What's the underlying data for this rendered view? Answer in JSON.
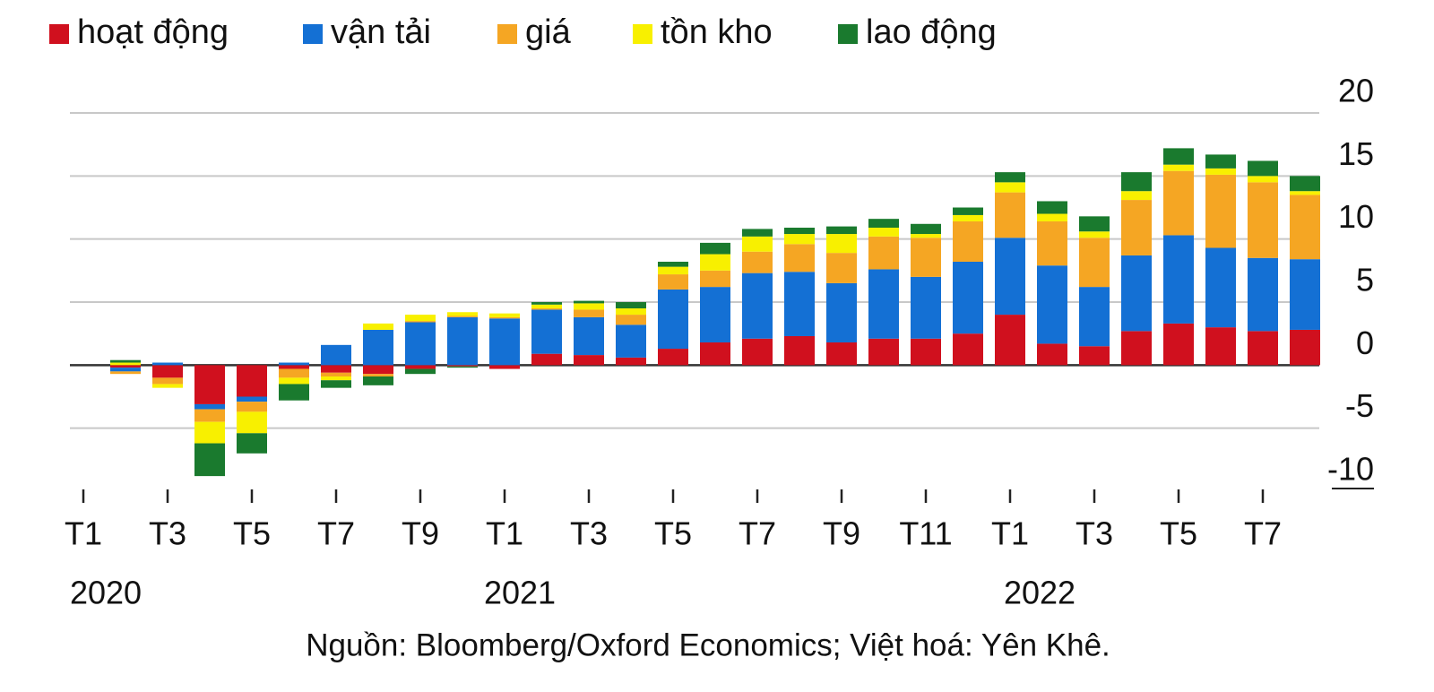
{
  "chart_data": {
    "type": "stacked_bar",
    "categories": [
      "T1",
      null,
      "T3",
      null,
      "T5",
      null,
      "T7",
      null,
      "T9",
      null,
      "T1",
      null,
      "T3",
      null,
      "T5",
      null,
      "T7",
      null,
      "T9",
      null,
      "T11",
      null,
      "T1",
      null,
      "T3",
      null,
      "T5",
      null,
      "T7",
      null
    ],
    "x_groups": [
      "2020",
      "2021",
      "2022"
    ],
    "series": [
      {
        "name": "hoạt động",
        "color": "#d0101e",
        "values": [
          null,
          -0.2,
          -1.0,
          -3.1,
          -2.5,
          -0.3,
          -0.6,
          -0.7,
          -0.3,
          -0.1,
          -0.3,
          0.9,
          0.8,
          0.6,
          1.3,
          1.8,
          2.1,
          2.3,
          1.8,
          2.1,
          2.1,
          2.5,
          4.0,
          1.7,
          1.5,
          2.7,
          3.3,
          3.0,
          2.7,
          2.8
        ]
      },
      {
        "name": "vận tải",
        "color": "#1470d4",
        "values": [
          null,
          -0.3,
          0.2,
          -0.4,
          -0.4,
          0.2,
          1.6,
          2.8,
          3.4,
          3.8,
          3.7,
          3.5,
          3.0,
          2.6,
          4.7,
          4.4,
          5.2,
          5.1,
          4.7,
          5.5,
          4.9,
          5.7,
          6.1,
          6.2,
          4.7,
          6.0,
          7.0,
          6.3,
          5.8,
          5.6
        ]
      },
      {
        "name": "giá",
        "color": "#f5a623",
        "values": [
          null,
          -0.2,
          -0.5,
          -1.0,
          -0.8,
          -0.7,
          -0.3,
          -0.2,
          0.1,
          0.1,
          0.1,
          0.1,
          0.6,
          0.8,
          1.2,
          1.3,
          1.7,
          2.2,
          2.4,
          2.6,
          3.1,
          3.2,
          3.6,
          3.5,
          3.9,
          4.4,
          5.1,
          5.8,
          6.0,
          5.1
        ]
      },
      {
        "name": "tồn kho",
        "color": "#f8f000",
        "values": [
          null,
          0.2,
          -0.3,
          -1.7,
          -1.7,
          -0.5,
          -0.3,
          0.5,
          0.5,
          0.3,
          0.3,
          0.3,
          0.5,
          0.5,
          0.6,
          1.3,
          1.2,
          0.8,
          1.5,
          0.7,
          0.3,
          0.5,
          0.8,
          0.6,
          0.5,
          0.7,
          0.5,
          0.5,
          0.5,
          0.3
        ]
      },
      {
        "name": "lao động",
        "color": "#1a7a2e",
        "values": [
          null,
          0.2,
          0,
          -2.6,
          -1.6,
          -1.3,
          -0.6,
          -0.7,
          -0.4,
          -0.1,
          0,
          0.2,
          0.2,
          0.5,
          0.4,
          0.9,
          0.6,
          0.5,
          0.6,
          0.7,
          0.8,
          0.6,
          0.8,
          1.0,
          1.2,
          1.5,
          1.3,
          1.1,
          1.2,
          1.2
        ]
      }
    ],
    "ylim": [
      -10,
      20
    ],
    "yticks": [
      -10,
      -5,
      0,
      5,
      10,
      15,
      20
    ],
    "grid": true,
    "legend": "top",
    "source": "Nguồn: Bloomberg/Oxford Economics; Việt hoá: Yên Khê."
  }
}
